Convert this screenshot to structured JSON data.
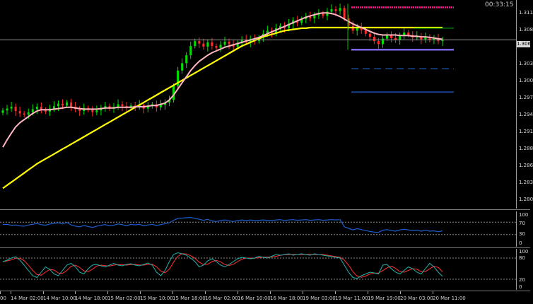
{
  "timer": "00:33:15",
  "current_price_tag": "1.306",
  "price_axis": [
    "1.311",
    "1.308",
    "1.306",
    "1.303",
    "1.300",
    "1.297",
    "1.294",
    "1.291",
    "1.288",
    "1.286",
    "1.283",
    "1.280"
  ],
  "rsi_axis": [
    "100",
    "70",
    "30",
    "0"
  ],
  "stoch_axis": [
    "100",
    "80",
    "20",
    "0"
  ],
  "time_axis": [
    "00",
    "14 Mar 02:00",
    "14 Mar 10:00",
    "14 Mar 18:00",
    "15 Mar 02:00",
    "15 Mar 10:00",
    "15 Mar 18:00",
    "16 Mar 02:00",
    "16 Mar 10:00",
    "16 Mar 18:00",
    "19 Mar 03:00",
    "19 Mar 11:00",
    "19 Mar 19:00",
    "20 Mar 03:00",
    "20 Mar 11:00"
  ],
  "colors": {
    "bull_candle": "#00e000",
    "bear_candle": "#ff2a2a",
    "ma_fast": "#ffb6c1",
    "ma_slow": "#ffff00",
    "rsi_line": "#1e5fd0",
    "stoch_main": "#20b2aa",
    "stoch_signal": "#ff3030",
    "level_top": "#ff1493",
    "level_bottom": "#7b68ee",
    "level_blue": "#2060d0"
  },
  "chart_data": {
    "type": "candlestick",
    "symbol_period": "H",
    "ylim": [
      1.2785,
      1.3125
    ],
    "series": [
      {
        "name": "close",
        "values": [
          1.2945,
          1.2948,
          1.2951,
          1.2944,
          1.294,
          1.2938,
          1.2942,
          1.2947,
          1.2951,
          1.2946,
          1.2943,
          1.2948,
          1.2952,
          1.2956,
          1.2953,
          1.2958,
          1.2951,
          1.2947,
          1.2944,
          1.2949,
          1.2946,
          1.2942,
          1.2945,
          1.2949,
          1.2952,
          1.2948,
          1.2951,
          1.2955,
          1.2952,
          1.2949,
          1.2953,
          1.2951,
          1.2954,
          1.2948,
          1.2952,
          1.2955,
          1.295,
          1.2954,
          1.2958,
          1.2962,
          1.2985,
          1.301,
          1.3022,
          1.3035,
          1.305,
          1.3058,
          1.3054,
          1.3049,
          1.3056,
          1.305,
          1.3047,
          1.3052,
          1.3057,
          1.3053,
          1.3049,
          1.3055,
          1.306,
          1.3056,
          1.3062,
          1.3058,
          1.3064,
          1.307,
          1.3075,
          1.3072,
          1.3079,
          1.3083,
          1.3079,
          1.3086,
          1.3092,
          1.3088,
          1.3094,
          1.3098,
          1.3095,
          1.31,
          1.3103,
          1.3099,
          1.3106,
          1.311,
          1.3107,
          1.3112,
          1.3095,
          1.3083,
          1.3075,
          1.3081,
          1.3076,
          1.307,
          1.3065,
          1.3058,
          1.3053,
          1.3062,
          1.3068,
          1.3063,
          1.306,
          1.3067,
          1.3072,
          1.3068,
          1.3064,
          1.3066,
          1.3061,
          1.3065,
          1.306,
          1.3062,
          1.3058,
          1.306
        ]
      },
      {
        "name": "fast_ma",
        "values": [
          1.2885,
          1.2897,
          1.2908,
          1.2918,
          1.2925,
          1.293,
          1.2935,
          1.294,
          1.2944,
          1.2946,
          1.2946,
          1.2946,
          1.2947,
          1.2948,
          1.2949,
          1.295,
          1.295,
          1.2949,
          1.2948,
          1.2947,
          1.2947,
          1.2947,
          1.2947,
          1.2948,
          1.2949,
          1.2949,
          1.2949,
          1.295,
          1.295,
          1.295,
          1.295,
          1.2951,
          1.2951,
          1.2951,
          1.2952,
          1.2953,
          1.2953,
          1.2955,
          1.2957,
          1.2962,
          1.297,
          1.298,
          1.299,
          1.3,
          1.301,
          1.3018,
          1.3025,
          1.303,
          1.3035,
          1.3039,
          1.3042,
          1.3045,
          1.3048,
          1.305,
          1.3052,
          1.3054,
          1.3056,
          1.3058,
          1.306,
          1.3062,
          1.3064,
          1.3067,
          1.307,
          1.3073,
          1.3076,
          1.3079,
          1.3082,
          1.3085,
          1.3088,
          1.3091,
          1.3094,
          1.3097,
          1.3099,
          1.3101,
          1.3103,
          1.3104,
          1.3104,
          1.3103,
          1.3101,
          1.3098,
          1.3094,
          1.309,
          1.3086,
          1.3083,
          1.308,
          1.3077,
          1.3074,
          1.3071,
          1.3069,
          1.3068,
          1.3068,
          1.3068,
          1.3068,
          1.3067,
          1.3067,
          1.3067,
          1.3066,
          1.3066,
          1.3065,
          1.3065,
          1.3064,
          1.3063,
          1.3062,
          1.3061
        ]
      },
      {
        "name": "slow_ma",
        "values": [
          1.2818,
          1.2823,
          1.2828,
          1.2833,
          1.2838,
          1.2843,
          1.2848,
          1.2853,
          1.2858,
          1.2862,
          1.2866,
          1.287,
          1.2874,
          1.2878,
          1.2882,
          1.2886,
          1.289,
          1.2894,
          1.2898,
          1.2902,
          1.2906,
          1.291,
          1.2914,
          1.2918,
          1.2922,
          1.2926,
          1.293,
          1.2934,
          1.2938,
          1.2942,
          1.2946,
          1.295,
          1.2954,
          1.2958,
          1.2962,
          1.2966,
          1.297,
          1.2974,
          1.2978,
          1.2982,
          1.2986,
          1.299,
          1.2994,
          1.2998,
          1.3002,
          1.3006,
          1.301,
          1.3014,
          1.3018,
          1.3022,
          1.3026,
          1.303,
          1.3034,
          1.3038,
          1.3042,
          1.3046,
          1.305,
          1.3053,
          1.3056,
          1.3059,
          1.3062,
          1.3065,
          1.3067,
          1.3069,
          1.3071,
          1.3073,
          1.3075,
          1.3076,
          1.3077,
          1.3078,
          1.3079,
          1.3079,
          1.308,
          1.308,
          1.308,
          1.308,
          1.308,
          1.308,
          1.308,
          1.308,
          1.308,
          1.308,
          1.308,
          1.308,
          1.308,
          1.308,
          1.308,
          1.308,
          1.308,
          1.308,
          1.308,
          1.308,
          1.308,
          1.308,
          1.308,
          1.308,
          1.308,
          1.308,
          1.308,
          1.308,
          1.308,
          1.308,
          1.308,
          1.308
        ]
      }
    ],
    "levels": [
      {
        "name": "upper",
        "value": 1.3113
      },
      {
        "name": "ma-target",
        "value": 1.3079
      },
      {
        "name": "current",
        "value": 1.306
      },
      {
        "name": "lower",
        "value": 1.3044
      },
      {
        "name": "blue-1",
        "value": 1.3013
      },
      {
        "name": "blue-2",
        "value": 1.2975
      }
    ],
    "rsi": {
      "ylim": [
        0,
        100
      ],
      "levels": [
        70,
        30
      ],
      "values": [
        62,
        63,
        60,
        61,
        58,
        57,
        61,
        63,
        66,
        62,
        60,
        64,
        66,
        68,
        64,
        69,
        61,
        57,
        55,
        59,
        56,
        53,
        57,
        60,
        62,
        58,
        60,
        64,
        62,
        58,
        63,
        61,
        63,
        58,
        61,
        63,
        59,
        62,
        65,
        68,
        76,
        82,
        83,
        84,
        85,
        82,
        79,
        76,
        79,
        74,
        72,
        75,
        77,
        74,
        72,
        75,
        77,
        75,
        77,
        75,
        76,
        77,
        76,
        75,
        77,
        78,
        75,
        77,
        78,
        76,
        77,
        78,
        76,
        77,
        78,
        76,
        77,
        78,
        77,
        78,
        55,
        50,
        45,
        49,
        46,
        43,
        40,
        38,
        37,
        44,
        46,
        43,
        41,
        45,
        47,
        45,
        43,
        44,
        41,
        44,
        41,
        42,
        39,
        42
      ]
    },
    "stochastic": {
      "ylim": [
        0,
        100
      ],
      "levels": [
        80,
        20
      ],
      "main": [
        70,
        74,
        80,
        84,
        74,
        60,
        45,
        30,
        25,
        40,
        55,
        48,
        35,
        30,
        45,
        60,
        65,
        55,
        40,
        35,
        50,
        60,
        62,
        58,
        55,
        60,
        65,
        60,
        58,
        62,
        64,
        60,
        58,
        62,
        66,
        60,
        40,
        30,
        45,
        70,
        90,
        95,
        92,
        88,
        80,
        70,
        55,
        60,
        72,
        78,
        70,
        60,
        55,
        62,
        70,
        78,
        82,
        80,
        78,
        80,
        85,
        82,
        80,
        85,
        90,
        88,
        90,
        92,
        88,
        90,
        92,
        90,
        88,
        92,
        90,
        88,
        86,
        84,
        82,
        80,
        60,
        40,
        25,
        22,
        30,
        35,
        40,
        38,
        35,
        60,
        62,
        50,
        40,
        35,
        45,
        55,
        50,
        40,
        35,
        50,
        65,
        55,
        40,
        28
      ]
    }
  }
}
